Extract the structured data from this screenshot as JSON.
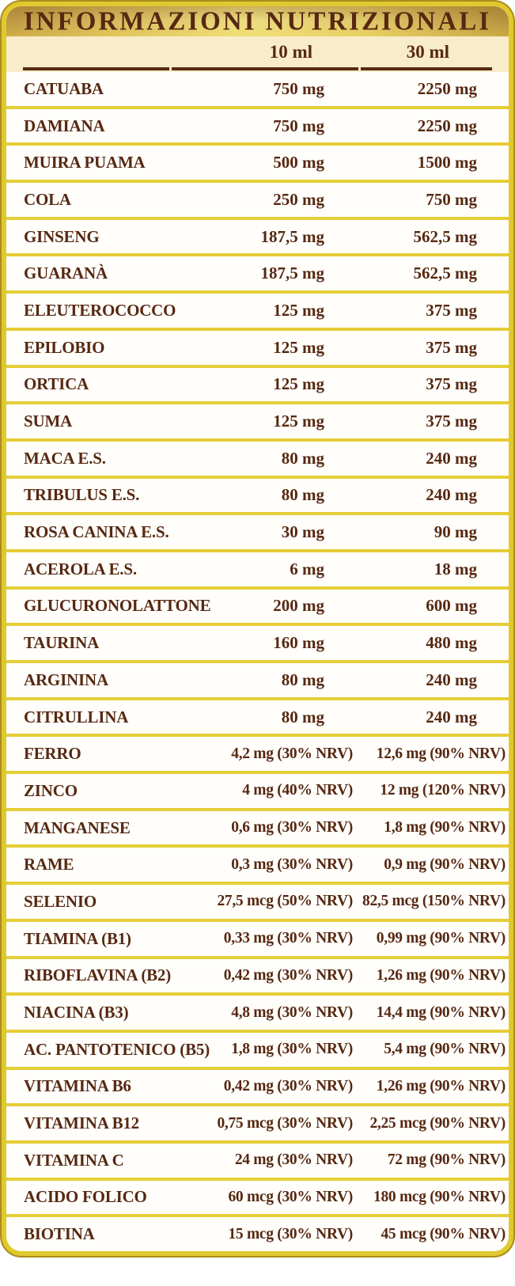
{
  "title": "INFORMAZIONI NUTRIZIONALI",
  "columns": {
    "col1": "10 ml",
    "col2": "30 ml"
  },
  "colors": {
    "border_gold": "#e0c92f",
    "border_gold_dark": "#a98d1c",
    "header_band_gold": "#e8d26a",
    "cream_background": "#f9ecca",
    "body_background": "#fffefb",
    "separator_gold": "#e5ce36",
    "text_brown": "#572811"
  },
  "chart_data": {
    "type": "table",
    "title": "INFORMAZIONI NUTRIZIONALI",
    "columns": [
      "",
      "10 ml",
      "30 ml"
    ]
  },
  "rows": [
    [
      "CATUABA",
      "750 mg",
      "2250 mg"
    ],
    [
      "DAMIANA",
      "750 mg",
      "2250 mg"
    ],
    [
      "MUIRA PUAMA",
      "500 mg",
      "1500 mg"
    ],
    [
      "COLA",
      "250 mg",
      "750 mg"
    ],
    [
      "GINSENG",
      "187,5 mg",
      "562,5 mg"
    ],
    [
      "GUARANÀ",
      "187,5 mg",
      "562,5 mg"
    ],
    [
      "ELEUTEROCOCCO",
      "125 mg",
      "375 mg"
    ],
    [
      "EPILOBIO",
      "125 mg",
      "375 mg"
    ],
    [
      "ORTICA",
      "125 mg",
      "375 mg"
    ],
    [
      "SUMA",
      "125 mg",
      "375 mg"
    ],
    [
      "MACA E.S.",
      "80 mg",
      "240 mg"
    ],
    [
      "TRIBULUS E.S.",
      "80 mg",
      "240 mg"
    ],
    [
      "ROSA CANINA E.S.",
      "30 mg",
      "90 mg"
    ],
    [
      "ACEROLA E.S.",
      "6 mg",
      "18 mg"
    ],
    [
      "GLUCURONOLATTONE",
      "200 mg",
      "600 mg"
    ],
    [
      "TAURINA",
      "160 mg",
      "480 mg"
    ],
    [
      "ARGININA",
      "80 mg",
      "240 mg"
    ],
    [
      "CITRULLINA",
      "80 mg",
      "240 mg"
    ],
    [
      "FERRO",
      "4,2 mg (30% NRV)",
      "12,6 mg (90% NRV)"
    ],
    [
      "ZINCO",
      "4 mg (40% NRV)",
      "12 mg (120% NRV)"
    ],
    [
      "MANGANESE",
      "0,6 mg (30% NRV)",
      "1,8 mg (90% NRV)"
    ],
    [
      "RAME",
      "0,3 mg (30% NRV)",
      "0,9 mg (90% NRV)"
    ],
    [
      "SELENIO",
      "27,5 mcg (50% NRV)",
      "82,5 mcg (150% NRV)"
    ],
    [
      "TIAMINA (B1)",
      "0,33 mg (30% NRV)",
      "0,99 mg (90% NRV)"
    ],
    [
      "RIBOFLAVINA (B2)",
      "0,42 mg (30% NRV)",
      "1,26 mg (90% NRV)"
    ],
    [
      "NIACINA (B3)",
      "4,8 mg (30% NRV)",
      "14,4 mg (90% NRV)"
    ],
    [
      "AC. PANTOTENICO (B5)",
      "1,8 mg (30% NRV)",
      "5,4 mg (90% NRV)"
    ],
    [
      "VITAMINA B6",
      "0,42 mg (30% NRV)",
      "1,26 mg (90% NRV)"
    ],
    [
      "VITAMINA B12",
      "0,75 mcg (30% NRV)",
      "2,25 mcg (90% NRV)"
    ],
    [
      "VITAMINA C",
      "24 mg (30% NRV)",
      "72 mg (90% NRV)"
    ],
    [
      "ACIDO FOLICO",
      "60 mcg (30% NRV)",
      "180 mcg (90% NRV)"
    ],
    [
      "BIOTINA",
      "15 mcg (30% NRV)",
      "45 mcg (90% NRV)"
    ]
  ]
}
